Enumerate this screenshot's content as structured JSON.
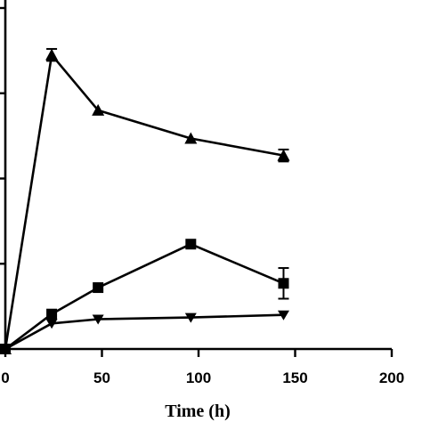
{
  "chart_data": {
    "type": "line",
    "title": "",
    "xlabel": "Time (h)",
    "ylabel": "",
    "xlim": [
      0,
      200
    ],
    "ylim": [
      0,
      4
    ],
    "x_ticks": [
      0,
      50,
      100,
      150,
      200
    ],
    "x_tick_labels": [
      "0",
      "50",
      "100",
      "150",
      "200"
    ],
    "y_ticks": [
      0,
      1,
      2,
      3,
      4
    ],
    "grid": false,
    "legend": "none",
    "series": [
      {
        "marker": "triangle-up",
        "x": [
          0,
          24,
          48,
          96,
          144
        ],
        "y": [
          0,
          3.45,
          2.8,
          2.47,
          2.27
        ],
        "err": [
          0,
          0.07,
          0,
          0,
          0.07
        ]
      },
      {
        "marker": "square",
        "x": [
          0,
          24,
          48,
          96,
          144
        ],
        "y": [
          0,
          0.41,
          0.72,
          1.23,
          0.77
        ],
        "err": [
          0,
          0,
          0,
          0,
          0.18
        ]
      },
      {
        "marker": "triangle-down",
        "x": [
          0,
          24,
          48,
          96,
          144
        ],
        "y": [
          0,
          0.3,
          0.35,
          0.37,
          0.4
        ],
        "err": [
          0,
          0,
          0,
          0,
          0
        ]
      }
    ]
  }
}
